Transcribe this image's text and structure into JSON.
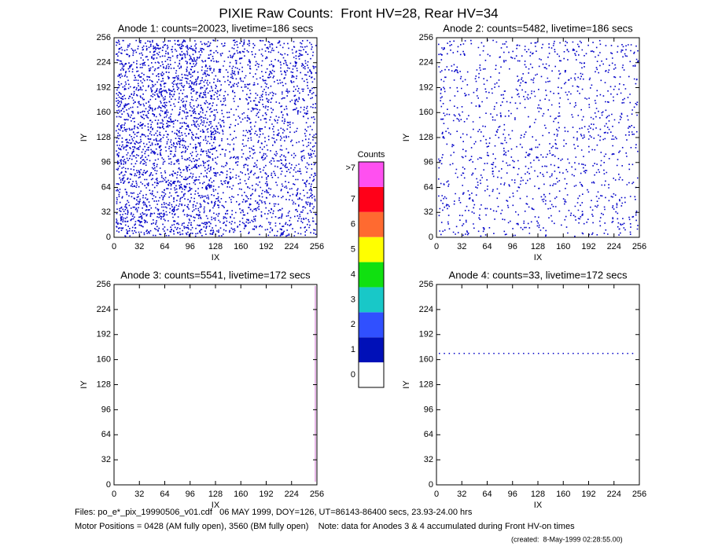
{
  "title": "PIXIE Raw Counts:  Front HV=28, Rear HV=34",
  "chart_data": [
    {
      "type": "heatmap",
      "title": "Anode 1: counts=20023, livetime=186 secs",
      "xlabel": "IX",
      "ylabel": "IY",
      "xlim": [
        0,
        256
      ],
      "ylim": [
        0,
        256
      ],
      "xticks": [
        0,
        32,
        64,
        96,
        128,
        160,
        192,
        224,
        256
      ],
      "yticks": [
        0,
        32,
        64,
        96,
        128,
        160,
        192,
        224,
        256
      ]
    },
    {
      "type": "heatmap",
      "title": "Anode 2: counts=5482, livetime=186 secs",
      "xlabel": "IX",
      "ylabel": "IY",
      "xlim": [
        0,
        256
      ],
      "ylim": [
        0,
        256
      ],
      "xticks": [
        0,
        32,
        64,
        96,
        128,
        160,
        192,
        224,
        256
      ],
      "yticks": [
        0,
        32,
        64,
        96,
        128,
        160,
        192,
        224,
        256
      ]
    },
    {
      "type": "heatmap",
      "title": "Anode 3: counts=5541, livetime=172 secs",
      "xlabel": "IX",
      "ylabel": "IY",
      "xlim": [
        0,
        256
      ],
      "ylim": [
        0,
        256
      ],
      "xticks": [
        0,
        32,
        64,
        96,
        128,
        160,
        192,
        224,
        256
      ],
      "yticks": [
        0,
        32,
        64,
        96,
        128,
        160,
        192,
        224,
        256
      ]
    },
    {
      "type": "heatmap",
      "title": "Anode 4: counts=33, livetime=172 secs",
      "xlabel": "IX",
      "ylabel": "IY",
      "xlim": [
        0,
        256
      ],
      "ylim": [
        0,
        256
      ],
      "xticks": [
        0,
        32,
        64,
        96,
        128,
        160,
        192,
        224,
        256
      ],
      "yticks": [
        0,
        32,
        64,
        96,
        128,
        160,
        192,
        224,
        256
      ]
    }
  ],
  "colorbar": {
    "title": "Counts",
    "labels": [
      "0",
      "1",
      "2",
      "3",
      "4",
      "5",
      "6",
      "7",
      ">7"
    ],
    "colors": [
      "#ffffff",
      "#0010b8",
      "#3050ff",
      "#18c8c8",
      "#10e010",
      "#ffff00",
      "#ff6a30",
      "#ff0018",
      "#ff50f0"
    ]
  },
  "footer": {
    "line1": "Files: po_e*_pix_19990506_v01.cdf   06 MAY 1999, DOY=126, UT=86143-86400 secs, 23.93-24.00 hrs",
    "line2": "Motor Positions = 0428 (AM fully open), 3560 (BM fully open)    Note: data for Anodes 3 & 4 accumulated during Front HV-on times",
    "created": "(created:  8-May-1999 02:28:55.00)"
  }
}
